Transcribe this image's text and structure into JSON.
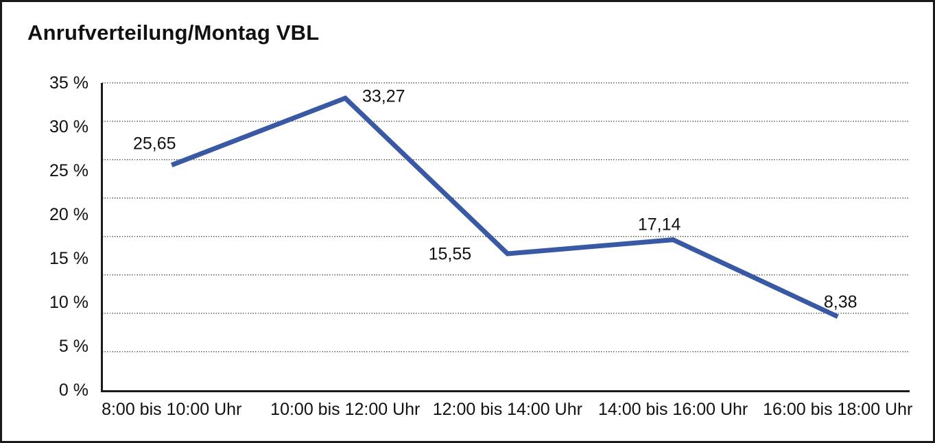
{
  "chart_data": {
    "type": "line",
    "title": "Anrufverteilung/Montag VBL",
    "categories": [
      "8:00 bis 10:00 Uhr",
      "10:00 bis 12:00 Uhr",
      "12:00 bis 14:00 Uhr",
      "14:00 bis 16:00 Uhr",
      "16:00 bis 18:00 Uhr"
    ],
    "values": [
      25.65,
      33.27,
      15.55,
      17.14,
      8.38
    ],
    "value_labels": [
      "25,65",
      "33,27",
      "15,55",
      "17,14",
      "8,38"
    ],
    "unit": "%",
    "xlabel": "",
    "ylabel": "",
    "ylim": [
      0,
      35
    ],
    "y_ticks": [
      0,
      5,
      10,
      15,
      20,
      25,
      30,
      35
    ],
    "y_tick_labels": [
      "0 %",
      "5 %",
      "10 %",
      "15 %",
      "20 %",
      "25 %",
      "30 %",
      "35 %"
    ],
    "grid": "horizontal-dotted",
    "grid_divisions": 8,
    "legend": "none",
    "colors": {
      "line": "#3A59A5",
      "text": "#111111",
      "grid": "#5d5d5d",
      "axis": "#1a1a1a"
    }
  }
}
